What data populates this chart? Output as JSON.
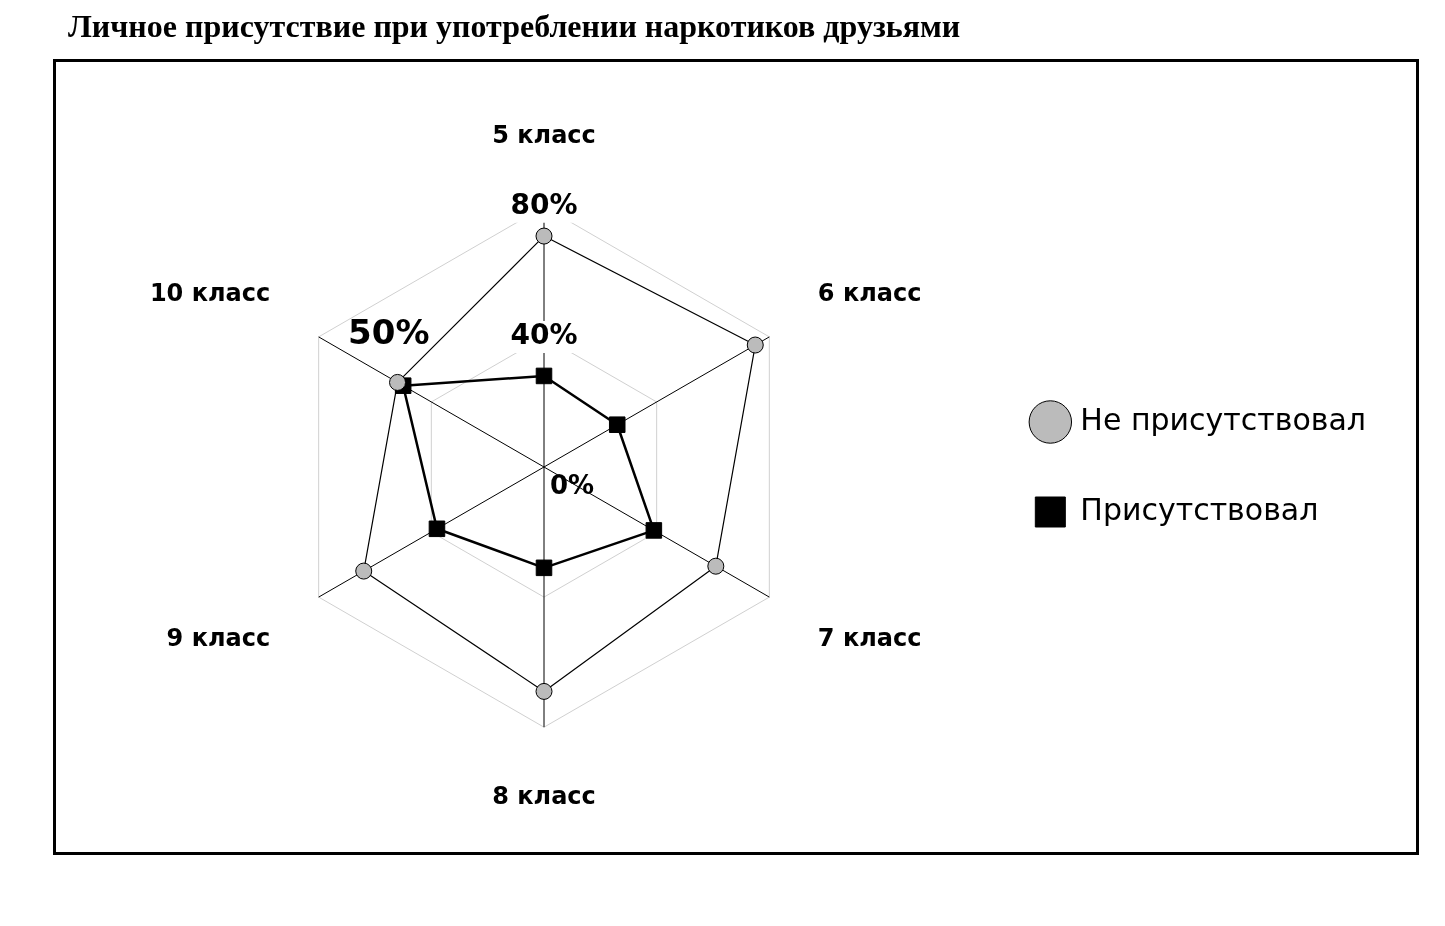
{
  "chart_data": {
    "type": "radar",
    "title": "Личное присутствие при употреблении наркотиков друзьями",
    "categories": [
      "5 класс",
      "6 класс",
      "7 класс",
      "8 класс",
      "9 класс",
      "10 класс"
    ],
    "series": [
      {
        "name": "Присутствовал",
        "color": "#000000",
        "marker": "square",
        "values": [
          28,
          26,
          39,
          31,
          38,
          50
        ]
      },
      {
        "name": "Не присутствовал",
        "color": "#000000",
        "marker": "circle",
        "values": [
          71,
          75,
          61,
          69,
          64,
          52
        ]
      }
    ],
    "ylim": [
      0,
      80
    ],
    "yticks": [
      {
        "value": 0,
        "label": "0%"
      },
      {
        "value": 40,
        "label": "40%"
      },
      {
        "value": 80,
        "label": "80%"
      }
    ],
    "annotations": [
      "50%"
    ],
    "legend": "right"
  }
}
